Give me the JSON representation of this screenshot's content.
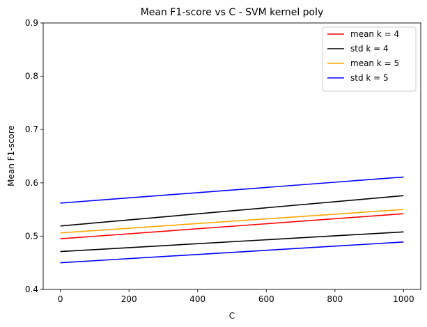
{
  "chart_data": {
    "type": "line",
    "title": "Mean F1-score vs C - SVM kernel poly",
    "xlabel": "C",
    "ylabel": "Mean F1-score",
    "xlim": [
      -50,
      1050
    ],
    "ylim": [
      0.4,
      0.9
    ],
    "xticks": [
      0,
      200,
      400,
      600,
      800,
      1000
    ],
    "xtick_labels": [
      "0",
      "200",
      "400",
      "600",
      "800",
      "1000"
    ],
    "yticks": [
      0.4,
      0.5,
      0.6,
      0.7,
      0.8,
      0.9
    ],
    "ytick_labels": [
      "0.4",
      "0.5",
      "0.6",
      "0.7",
      "0.8",
      "0.9"
    ],
    "grid": false,
    "legend_position": "top-right",
    "x": [
      0,
      1000
    ],
    "series": [
      {
        "name": "mean k = 4",
        "color": "#ff0000",
        "values": [
          0.495,
          0.542
        ]
      },
      {
        "name": "std k = 4",
        "color": "#000000",
        "values": [
          0.471,
          0.508
        ]
      },
      {
        "name": "std k = 4",
        "color": "#000000",
        "values": [
          0.519,
          0.576
        ]
      },
      {
        "name": "mean k = 5",
        "color": "#ffa500",
        "values": [
          0.506,
          0.55
        ]
      },
      {
        "name": "std k = 5",
        "color": "#0000ff",
        "values": [
          0.45,
          0.489
        ]
      },
      {
        "name": "std k = 5",
        "color": "#0000ff",
        "values": [
          0.562,
          0.611
        ]
      }
    ],
    "legend": [
      {
        "label": "mean k = 4",
        "color": "#ff0000"
      },
      {
        "label": "std k = 4",
        "color": "#000000"
      },
      {
        "label": "mean k = 5",
        "color": "#ffa500"
      },
      {
        "label": "std k = 5",
        "color": "#0000ff"
      }
    ]
  }
}
